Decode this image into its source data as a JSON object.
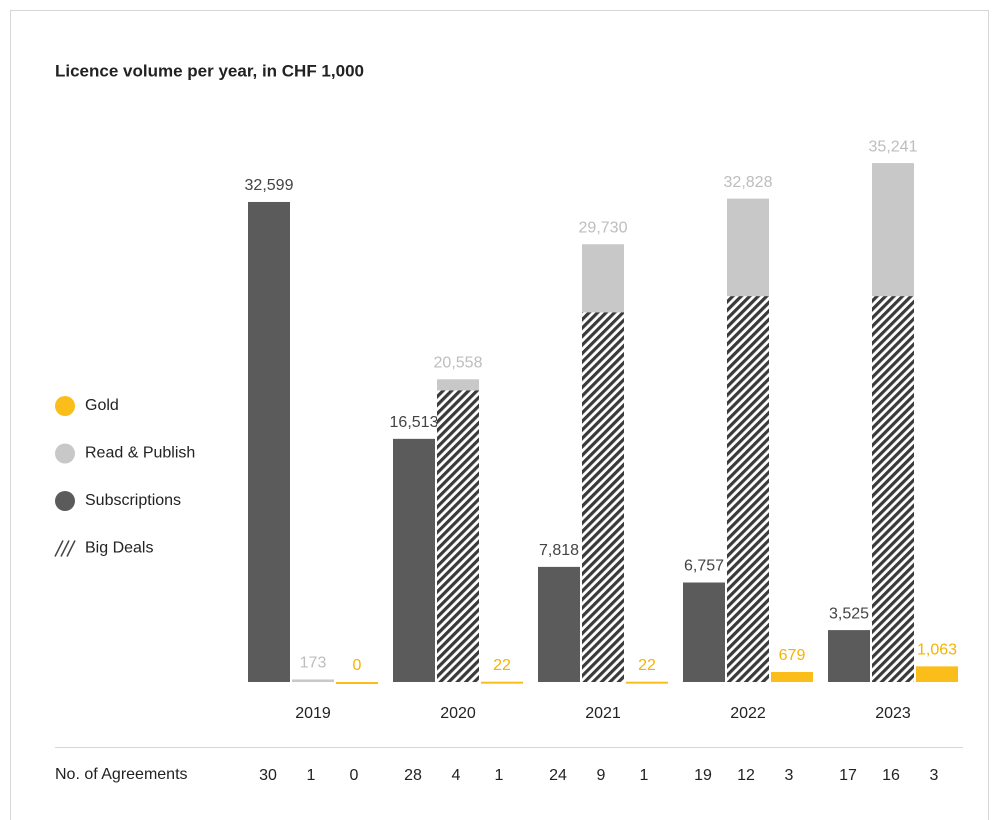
{
  "chart_data": {
    "type": "bar",
    "title": "Licence volume per year, in CHF 1,000",
    "categories": [
      "2019",
      "2020",
      "2021",
      "2022",
      "2023"
    ],
    "series": [
      {
        "name": "Subscriptions",
        "color": "#5b5b5b",
        "values": [
          32599,
          16513,
          7818,
          6757,
          3525
        ],
        "value_labels": [
          "32,599",
          "16,513",
          "7,818",
          "6,757",
          "3,525"
        ]
      },
      {
        "name": "Read & Publish",
        "color": "#c8c8c8",
        "values": [
          173,
          20558,
          29730,
          32828,
          35241
        ],
        "value_labels": [
          "173",
          "20,558",
          "29,730",
          "32,828",
          "35,241"
        ]
      },
      {
        "name": "Gold",
        "color": "#fbbd1a",
        "values": [
          0,
          22,
          22,
          679,
          1063
        ],
        "value_labels": [
          "0",
          "22",
          "22",
          "679",
          "1,063"
        ]
      },
      {
        "name": "Big Deals",
        "color": "#5b5b5b",
        "pattern": "hatch",
        "within": "Read & Publish",
        "values": [
          null,
          19800,
          25100,
          26200,
          26200
        ]
      }
    ],
    "ylim": [
      0,
      40000
    ],
    "agreements": {
      "label": "No. of Agreements",
      "values": [
        [
          30,
          1,
          0
        ],
        [
          28,
          4,
          1
        ],
        [
          24,
          9,
          1
        ],
        [
          19,
          12,
          3
        ],
        [
          17,
          16,
          3
        ]
      ]
    }
  }
}
